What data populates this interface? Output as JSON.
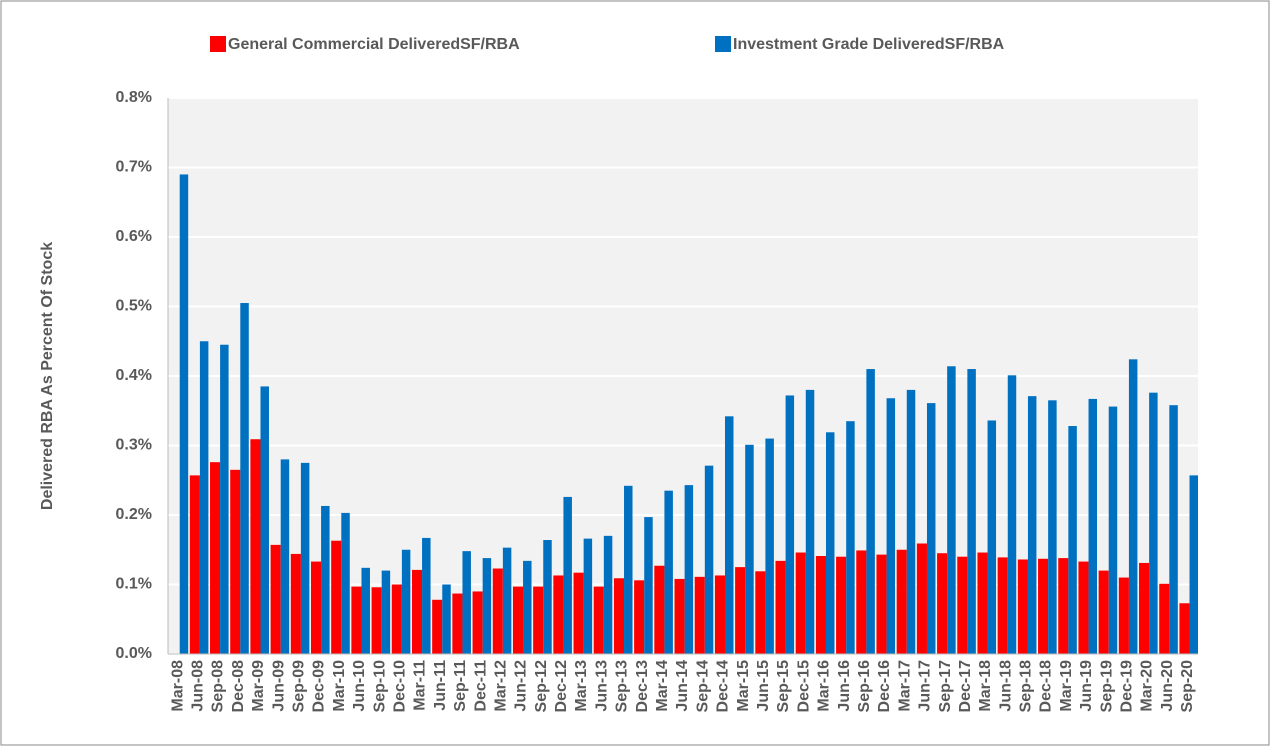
{
  "chart_data": {
    "type": "bar",
    "y_label": "Delivered RBA As Percent Of Stock",
    "categories": [
      "Mar-08",
      "Jun-08",
      "Sep-08",
      "Dec-08",
      "Mar-09",
      "Jun-09",
      "Sep-09",
      "Dec-09",
      "Mar-10",
      "Jun-10",
      "Sep-10",
      "Dec-10",
      "Mar-11",
      "Jun-11",
      "Sep-11",
      "Dec-11",
      "Mar-12",
      "Jun-12",
      "Sep-12",
      "Dec-12",
      "Mar-13",
      "Jun-13",
      "Sep-13",
      "Dec-13",
      "Mar-14",
      "Jun-14",
      "Sep-14",
      "Dec-14",
      "Mar-15",
      "Jun-15",
      "Sep-15",
      "Dec-15",
      "Mar-16",
      "Jun-16",
      "Sep-16",
      "Dec-16",
      "Mar-17",
      "Jun-17",
      "Sep-17",
      "Dec-17",
      "Mar-18",
      "Jun-18",
      "Sep-18",
      "Dec-18",
      "Mar-19",
      "Jun-19",
      "Sep-19",
      "Dec-19",
      "Mar-20",
      "Jun-20",
      "Sep-20"
    ],
    "series": [
      {
        "name": "General Commercial DeliveredSF/RBA",
        "color": "#ff0000",
        "values": [
          null,
          0.257,
          0.276,
          0.265,
          0.309,
          0.157,
          0.144,
          0.133,
          0.163,
          0.097,
          0.096,
          0.1,
          0.121,
          0.078,
          0.087,
          0.09,
          0.123,
          0.097,
          0.097,
          0.113,
          0.117,
          0.097,
          0.109,
          0.106,
          0.127,
          0.108,
          0.111,
          0.113,
          0.125,
          0.119,
          0.134,
          0.146,
          0.141,
          0.14,
          0.149,
          0.143,
          0.15,
          0.159,
          0.145,
          0.14,
          0.146,
          0.139,
          0.136,
          0.137,
          0.138,
          0.133,
          0.12,
          0.11,
          0.131,
          0.101,
          0.073
        ]
      },
      {
        "name": "Investment Grade DeliveredSF/RBA",
        "color": "#0070c0",
        "values": [
          0.69,
          0.45,
          0.445,
          0.505,
          0.385,
          0.28,
          0.275,
          0.213,
          0.203,
          0.124,
          0.12,
          0.15,
          0.167,
          0.1,
          0.148,
          0.138,
          0.153,
          0.134,
          0.164,
          0.226,
          0.166,
          0.17,
          0.242,
          0.197,
          0.235,
          0.243,
          0.271,
          0.342,
          0.301,
          0.31,
          0.372,
          0.38,
          0.319,
          0.335,
          0.41,
          0.368,
          0.38,
          0.361,
          0.414,
          0.41,
          0.336,
          0.401,
          0.371,
          0.365,
          0.328,
          0.367,
          0.356,
          0.424,
          0.376,
          0.358,
          0.257
        ]
      }
    ],
    "ylim": [
      0,
      0.8
    ],
    "yticks": [
      {
        "value": 0,
        "label": "0.0%"
      },
      {
        "value": 0.1,
        "label": "0.1%"
      },
      {
        "value": 0.2,
        "label": "0.2%"
      },
      {
        "value": 0.3,
        "label": "0.3%"
      },
      {
        "value": 0.4,
        "label": "0.4%"
      },
      {
        "value": 0.5,
        "label": "0.5%"
      },
      {
        "value": 0.6,
        "label": "0.6%"
      },
      {
        "value": 0.7,
        "label": "0.7%"
      },
      {
        "value": 0.8,
        "label": "0.8%"
      }
    ],
    "grid": true
  }
}
